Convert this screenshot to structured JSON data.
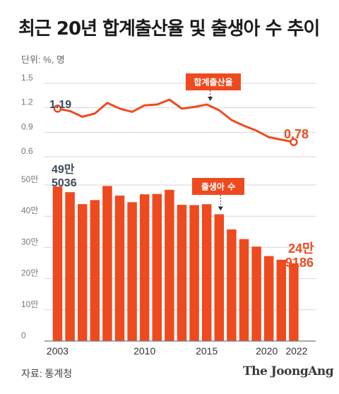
{
  "title": "최근 20년 합계출산율 및 출생아 수 추이",
  "unit": "단위: %, 명",
  "source": "자료: 통계청",
  "brand": "The JoongAng",
  "colors": {
    "accent": "#ee4a1f",
    "axis": "#999999",
    "text": "#3d4a5a"
  },
  "chart_data": [
    {
      "type": "line",
      "series": [
        {
          "name": "합계출산율",
          "x": [
            2003,
            2004,
            2005,
            2006,
            2007,
            2008,
            2009,
            2010,
            2011,
            2012,
            2013,
            2014,
            2015,
            2016,
            2017,
            2018,
            2019,
            2020,
            2021,
            2022
          ],
          "values": [
            1.19,
            1.16,
            1.09,
            1.13,
            1.26,
            1.19,
            1.15,
            1.23,
            1.24,
            1.3,
            1.19,
            1.21,
            1.24,
            1.17,
            1.05,
            0.98,
            0.92,
            0.84,
            0.81,
            0.78
          ]
        }
      ],
      "yticks": [
        "1.5",
        "1.2",
        "0.9",
        "0.6"
      ],
      "ylim": [
        0.6,
        1.5
      ],
      "annotations": {
        "start": "1.19",
        "end": "0.78",
        "callout": "합계출산율"
      }
    },
    {
      "type": "bar",
      "series": [
        {
          "name": "출생아 수",
          "x": [
            2003,
            2004,
            2005,
            2006,
            2007,
            2008,
            2009,
            2010,
            2011,
            2012,
            2013,
            2014,
            2015,
            2016,
            2017,
            2018,
            2019,
            2020,
            2021,
            2022
          ],
          "values": [
            495036,
            476958,
            438707,
            451759,
            496822,
            465892,
            444849,
            470171,
            471265,
            484550,
            436455,
            435435,
            438420,
            406243,
            357771,
            326822,
            302676,
            272337,
            260562,
            249186
          ]
        }
      ],
      "yticks": [
        "50만",
        "40만",
        "30만",
        "20만",
        "10만",
        "0"
      ],
      "ylim": [
        0,
        500000
      ],
      "xticks": [
        "2003",
        "2010",
        "2015",
        "2020",
        "2022"
      ],
      "annotations": {
        "first_line1": "49만",
        "first_line2": "5036",
        "last_line1": "24만",
        "last_line2": "9186",
        "callout": "출생아 수"
      }
    }
  ]
}
